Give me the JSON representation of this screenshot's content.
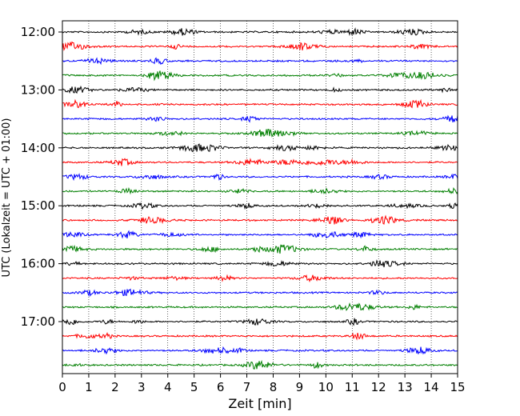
{
  "chart_data": {
    "type": "line",
    "description_kind": "helicorder seismogram",
    "xlabel": "Zeit  [min]",
    "ylabel": "UTC (Lokalzeit = UTC + 01:00)",
    "xlim": [
      0,
      15
    ],
    "x_ticks": [
      "0",
      "1",
      "2",
      "3",
      "4",
      "5",
      "6",
      "7",
      "8",
      "9",
      "10",
      "11",
      "12",
      "13",
      "14",
      "15"
    ],
    "y_ticks": [
      "12:00",
      "13:00",
      "14:00",
      "15:00",
      "16:00",
      "17:00"
    ],
    "grid": "vertical dotted at every minute",
    "trace_colors": [
      "#000000",
      "#ff0000",
      "#0000ff",
      "#007f00"
    ],
    "trace_count": 24,
    "trace_minutes_each": 15,
    "start_time": "12:00"
  }
}
